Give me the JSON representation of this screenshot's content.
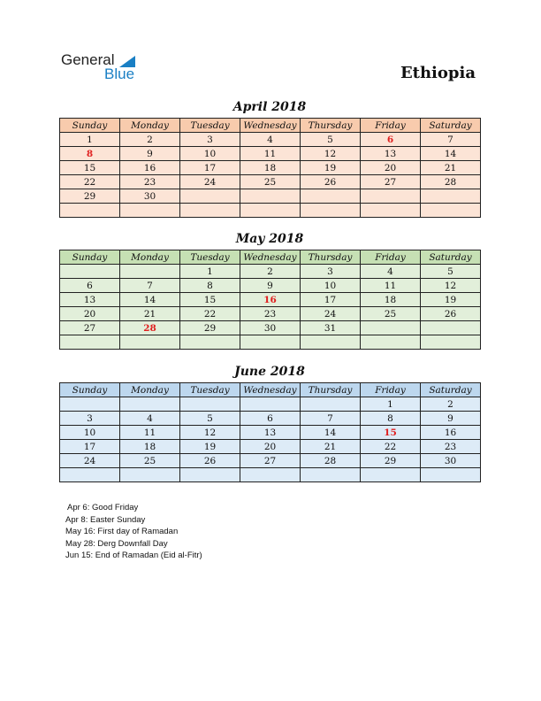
{
  "logo": {
    "word1": "General",
    "word2": "Blue"
  },
  "country": "Ethiopia",
  "weekdays": [
    "Sunday",
    "Monday",
    "Tuesday",
    "Wednesday",
    "Thursday",
    "Friday",
    "Saturday"
  ],
  "months": [
    {
      "title": "April 2018",
      "header_color": "#F8CBAD",
      "body_color": "#FCE4D6",
      "holidays": [
        6,
        8
      ],
      "weeks": [
        [
          "1",
          "2",
          "3",
          "4",
          "5",
          "6",
          "7"
        ],
        [
          "8",
          "9",
          "10",
          "11",
          "12",
          "13",
          "14"
        ],
        [
          "15",
          "16",
          "17",
          "18",
          "19",
          "20",
          "21"
        ],
        [
          "22",
          "23",
          "24",
          "25",
          "26",
          "27",
          "28"
        ],
        [
          "29",
          "30",
          "",
          "",
          "",
          "",
          ""
        ],
        [
          "",
          "",
          "",
          "",
          "",
          "",
          ""
        ]
      ]
    },
    {
      "title": "May 2018",
      "header_color": "#C6E0B4",
      "body_color": "#E2EFDA",
      "holidays": [
        16,
        28
      ],
      "weeks": [
        [
          "",
          "",
          "1",
          "2",
          "3",
          "4",
          "5"
        ],
        [
          "6",
          "7",
          "8",
          "9",
          "10",
          "11",
          "12"
        ],
        [
          "13",
          "14",
          "15",
          "16",
          "17",
          "18",
          "19"
        ],
        [
          "20",
          "21",
          "22",
          "23",
          "24",
          "25",
          "26"
        ],
        [
          "27",
          "28",
          "29",
          "30",
          "31",
          "",
          ""
        ],
        [
          "",
          "",
          "",
          "",
          "",
          "",
          ""
        ]
      ]
    },
    {
      "title": "June 2018",
      "header_color": "#BDD7EE",
      "body_color": "#DDEBF7",
      "holidays": [
        15
      ],
      "weeks": [
        [
          "",
          "",
          "",
          "",
          "",
          "1",
          "2"
        ],
        [
          "3",
          "4",
          "5",
          "6",
          "7",
          "8",
          "9"
        ],
        [
          "10",
          "11",
          "12",
          "13",
          "14",
          "15",
          "16"
        ],
        [
          "17",
          "18",
          "19",
          "20",
          "21",
          "22",
          "23"
        ],
        [
          "24",
          "25",
          "26",
          "27",
          "28",
          "29",
          "30"
        ],
        [
          "",
          "",
          "",
          "",
          "",
          "",
          ""
        ]
      ]
    }
  ],
  "notes": [
    "Apr 6: Good Friday",
    "Apr 8: Easter Sunday",
    "May 16: First day of Ramadan",
    "May 28: Derg Downfall Day",
    "Jun 15: End of Ramadan (Eid al-Fitr)"
  ]
}
